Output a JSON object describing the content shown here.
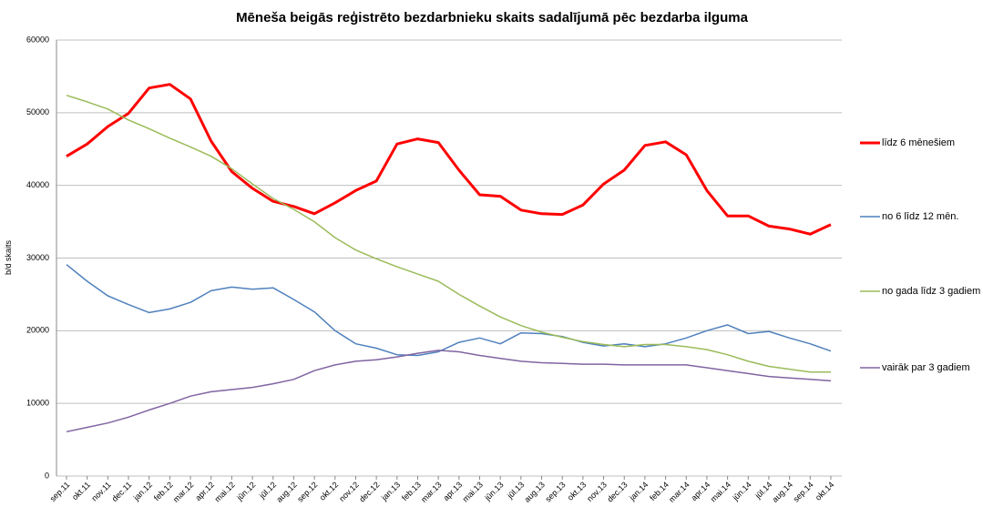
{
  "chart_data": {
    "type": "line",
    "title": "Mēneša beigās reģistrēto bezdarbnieku skaits sadalījumā pēc bezdarba ilguma",
    "y_label": "b/d skaits",
    "categories": [
      "sep.11",
      "okt.11",
      "nov.11",
      "dec.11",
      "jan.12",
      "feb.12",
      "mar.12",
      "apr.12",
      "mai.12",
      "jūn.12",
      "jūl.12",
      "aug.12",
      "sep.12",
      "okt.12",
      "nov.12",
      "dec.12",
      "jan.13",
      "feb.13",
      "mar.13",
      "apr.13",
      "mai.13",
      "jūn.13",
      "jūl.13",
      "aug.13",
      "sep.13",
      "okt.13",
      "nov.13",
      "dec.13",
      "jan.14",
      "feb.14",
      "mar.14",
      "apr.14",
      "mai.14",
      "jūn.14",
      "jūl.14",
      "aug.14",
      "sep.14",
      "okt.14"
    ],
    "series": [
      {
        "name": "līdz 6 mēnešiem",
        "color": "#ff0000",
        "width": 3,
        "values": [
          44000,
          45700,
          48100,
          49900,
          53400,
          53900,
          51900,
          46100,
          41900,
          39600,
          37800,
          37100,
          36100,
          37600,
          39300,
          40600,
          45700,
          46400,
          45900,
          42100,
          38700,
          38500,
          36600,
          36100,
          36000,
          37300,
          40200,
          42100,
          45500,
          46000,
          44200,
          39300,
          35800,
          35800,
          34400,
          34000,
          33300,
          34600
        ]
      },
      {
        "name": "no 6 līdz 12 mēn.",
        "color": "#4f81bd",
        "width": 1.5,
        "values": [
          29100,
          26800,
          24800,
          23600,
          22500,
          23000,
          23900,
          25500,
          26000,
          25700,
          25900,
          24300,
          22600,
          20000,
          18200,
          17600,
          16700,
          16600,
          17100,
          18400,
          19000,
          18200,
          19700,
          19600,
          19200,
          18400,
          17900,
          18200,
          17800,
          18200,
          19000,
          20000,
          20800,
          19600,
          19900,
          19000,
          18200,
          17200
        ]
      },
      {
        "name": "no gada līdz 3 gadiem",
        "color": "#9bbb59",
        "width": 1.5,
        "values": [
          52400,
          51500,
          50500,
          49000,
          47800,
          46500,
          45300,
          44000,
          42300,
          40200,
          38200,
          36700,
          35000,
          32800,
          31100,
          29900,
          28800,
          27800,
          26800,
          25000,
          23400,
          21900,
          20700,
          19800,
          19100,
          18500,
          18100,
          17800,
          18100,
          18100,
          17800,
          17400,
          16700,
          15800,
          15100,
          14700,
          14300,
          14300
        ]
      },
      {
        "name": "vairāk par 3 gadiem",
        "color": "#8064a2",
        "width": 1.5,
        "values": [
          6100,
          6700,
          7300,
          8100,
          9100,
          10000,
          11000,
          11600,
          11900,
          12200,
          12700,
          13300,
          14500,
          15300,
          15800,
          16000,
          16400,
          16900,
          17300,
          17100,
          16600,
          16200,
          15800,
          15600,
          15500,
          15400,
          15400,
          15300,
          15300,
          15300,
          15300,
          14900,
          14500,
          14100,
          13700,
          13500,
          13300,
          13100
        ]
      }
    ],
    "ylim": [
      0,
      60000
    ],
    "yticks": [
      0,
      10000,
      20000,
      30000,
      40000,
      50000,
      60000
    ],
    "grid": true,
    "legend": "right"
  }
}
